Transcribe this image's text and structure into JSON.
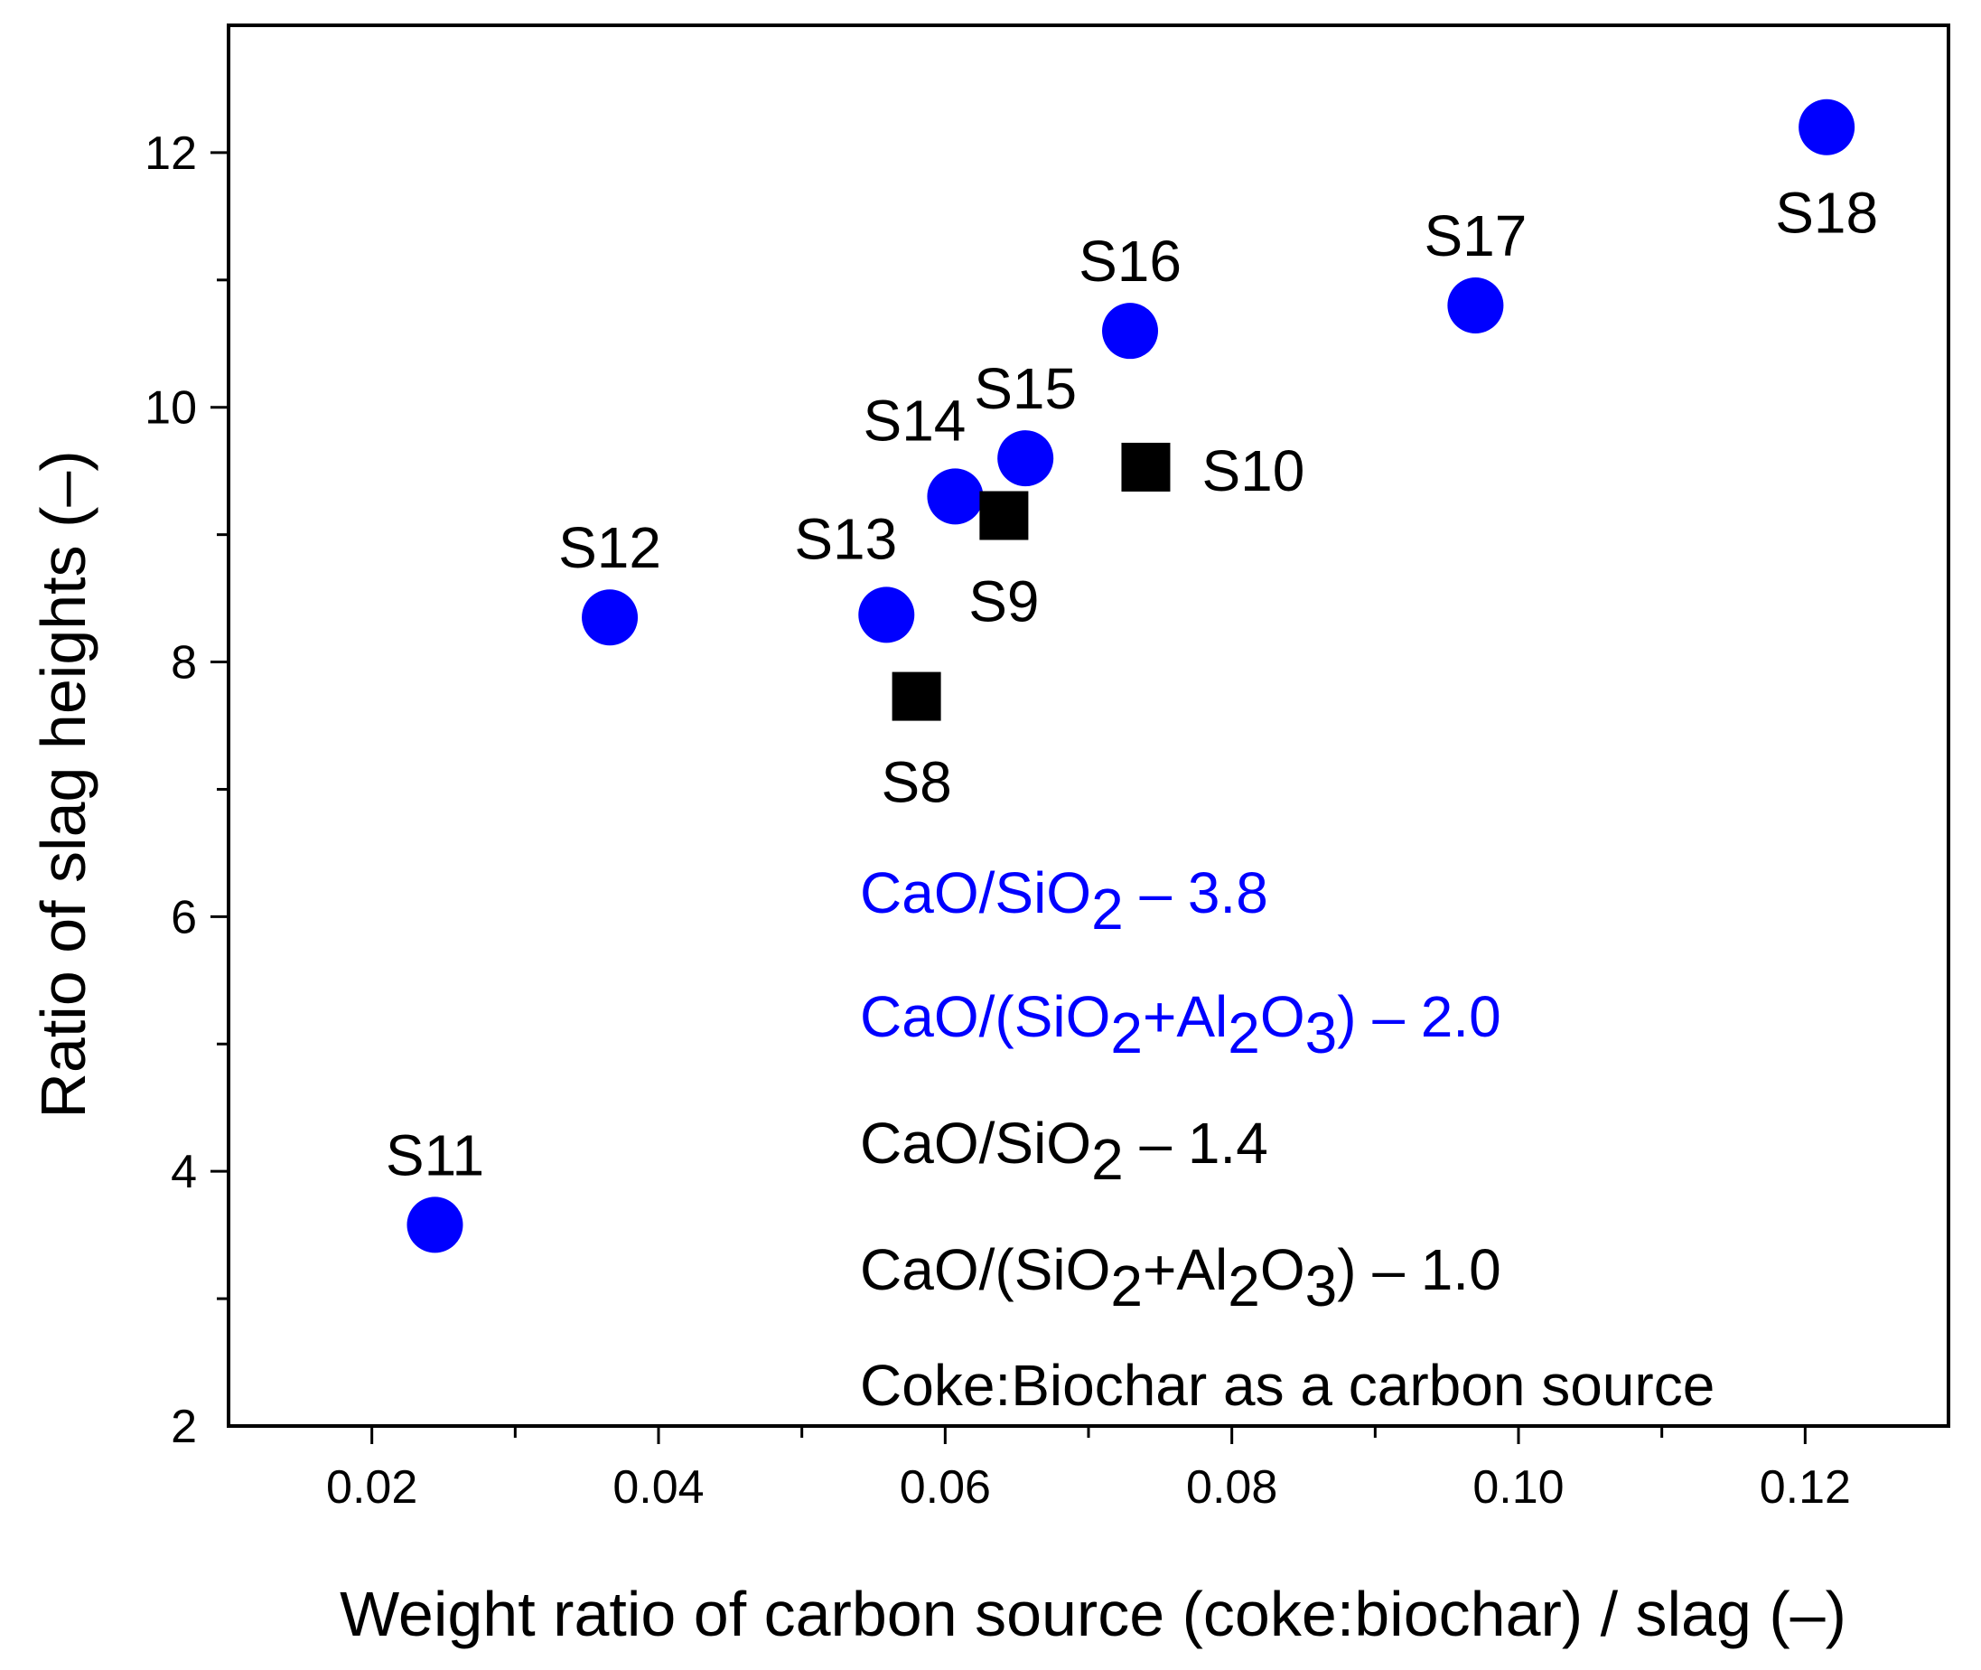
{
  "chart_data": {
    "type": "scatter",
    "title": "",
    "xlabel": "Weight ratio of carbon source (coke:biochar) / slag (–)",
    "ylabel": "Ratio of slag heights (–)",
    "xlim": [
      0.01,
      0.13
    ],
    "ylim": [
      2,
      13
    ],
    "xticks": [
      0.02,
      0.04,
      0.06,
      0.08,
      0.1,
      0.12
    ],
    "xtick_labels": [
      "0.02",
      "0.04",
      "0.06",
      "0.08",
      "0.10",
      "0.12"
    ],
    "yticks": [
      2,
      4,
      6,
      8,
      10,
      12
    ],
    "ytick_labels": [
      "2",
      "4",
      "6",
      "8",
      "10",
      "12"
    ],
    "grid": false,
    "series": [
      {
        "name": "CaO/SiO2 – 3.8, CaO/(SiO2+Al2O3) – 2.0",
        "marker": "circle",
        "color": "#0000ff",
        "points": [
          {
            "label": "S11",
            "x": 0.0244,
            "y": 3.58,
            "label_pos": "above"
          },
          {
            "label": "S12",
            "x": 0.0366,
            "y": 8.35,
            "label_pos": "above"
          },
          {
            "label": "S13",
            "x": 0.0559,
            "y": 8.37,
            "label_pos": "above-left"
          },
          {
            "label": "S14",
            "x": 0.0607,
            "y": 9.3,
            "label_pos": "above-left"
          },
          {
            "label": "S15",
            "x": 0.0656,
            "y": 9.6,
            "label_pos": "above"
          },
          {
            "label": "S16",
            "x": 0.0729,
            "y": 10.6,
            "label_pos": "above"
          },
          {
            "label": "S17",
            "x": 0.097,
            "y": 10.8,
            "label_pos": "above"
          },
          {
            "label": "S18",
            "x": 0.1215,
            "y": 12.2,
            "label_pos": "below"
          }
        ]
      },
      {
        "name": "CaO/SiO2 – 1.4, CaO/(SiO2+Al2O3) – 1.0",
        "marker": "square",
        "color": "#000000",
        "points": [
          {
            "label": "S8",
            "x": 0.058,
            "y": 7.73,
            "label_pos": "below"
          },
          {
            "label": "S9",
            "x": 0.0641,
            "y": 9.15,
            "label_pos": "below"
          },
          {
            "label": "S10",
            "x": 0.074,
            "y": 9.53,
            "label_pos": "right"
          }
        ]
      }
    ],
    "annotations": [
      {
        "color": "#0000ff",
        "parts": [
          {
            "t": "CaO/SiO"
          },
          {
            "t": "2",
            "sub": true
          },
          {
            "t": " – 3.8"
          }
        ]
      },
      {
        "color": "#0000ff",
        "parts": [
          {
            "t": "CaO/(SiO"
          },
          {
            "t": "2",
            "sub": true
          },
          {
            "t": "+Al"
          },
          {
            "t": "2",
            "sub": true
          },
          {
            "t": "O"
          },
          {
            "t": "3",
            "sub": true
          },
          {
            "t": ") – 2.0"
          }
        ]
      },
      {
        "color": "#000000",
        "parts": [
          {
            "t": "CaO/SiO"
          },
          {
            "t": "2",
            "sub": true
          },
          {
            "t": " – 1.4"
          }
        ]
      },
      {
        "color": "#000000",
        "parts": [
          {
            "t": "CaO/(SiO"
          },
          {
            "t": "2",
            "sub": true
          },
          {
            "t": "+Al"
          },
          {
            "t": "2",
            "sub": true
          },
          {
            "t": "O"
          },
          {
            "t": "3",
            "sub": true
          },
          {
            "t": ") – 1.0"
          }
        ]
      },
      {
        "color": "#000000",
        "parts": [
          {
            "t": "Coke:Biochar as a carbon source"
          }
        ]
      }
    ]
  }
}
